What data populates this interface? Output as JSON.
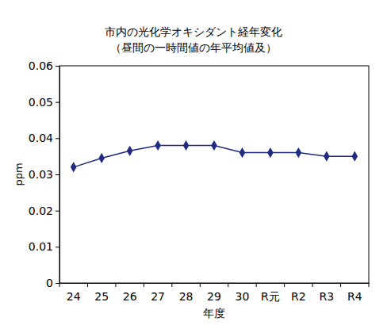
{
  "chart_data": {
    "type": "line",
    "title": "市内の光化学オキシダント経年変化",
    "subtitle": "（昼間の一時間値の年平均値及）",
    "x_label": "年度",
    "y_label": "ppm",
    "categories": [
      "24",
      "25",
      "26",
      "27",
      "28",
      "29",
      "30",
      "R元",
      "R2",
      "R3",
      "R4"
    ],
    "values": [
      0.032,
      0.0345,
      0.0365,
      0.038,
      0.038,
      0.038,
      0.036,
      0.036,
      0.036,
      0.035,
      0.035
    ],
    "color": "#1f2a80",
    "marker": "diamond",
    "ylim": [
      0,
      0.06
    ],
    "yticks": [
      0,
      0.01,
      0.02,
      0.03,
      0.04,
      0.05,
      0.06
    ],
    "grid": false
  }
}
